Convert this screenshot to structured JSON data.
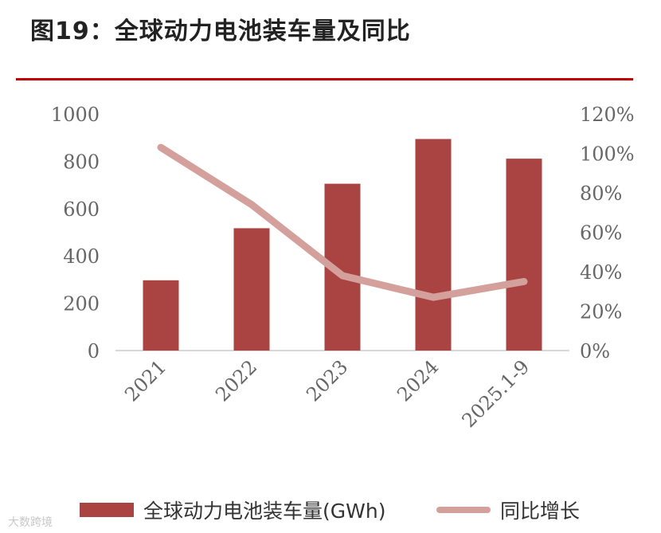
{
  "title": "图19：全球动力电池装车量及同比",
  "watermark": "大数跨境",
  "colors": {
    "bar": "#a94442",
    "line": "#d4a09c",
    "rule": "#c00000",
    "axis": "#cccccc"
  },
  "chart_data": {
    "type": "bar",
    "categories": [
      "2021",
      "2022",
      "2023",
      "2024",
      "2025.1-9"
    ],
    "series": [
      {
        "name": "全球动力电池装车量(GWh)",
        "type": "bar",
        "axis": "left",
        "values": [
          297,
          517,
          705,
          894,
          811
        ]
      },
      {
        "name": "同比增长",
        "type": "line",
        "axis": "right",
        "values": [
          103,
          74,
          38,
          27,
          35
        ],
        "unit": "%"
      }
    ],
    "y_left": {
      "ylim": [
        0,
        1000
      ],
      "ticks": [
        "0",
        "200",
        "400",
        "600",
        "800",
        "1000"
      ]
    },
    "y_right": {
      "ylim": [
        0,
        120
      ],
      "ticks": [
        "0%",
        "20%",
        "40%",
        "60%",
        "80%",
        "100%",
        "120%"
      ]
    },
    "grid": false,
    "legend_position": "bottom"
  },
  "legend": {
    "bar_label": "全球动力电池装车量(GWh)",
    "line_label": "同比增长"
  }
}
